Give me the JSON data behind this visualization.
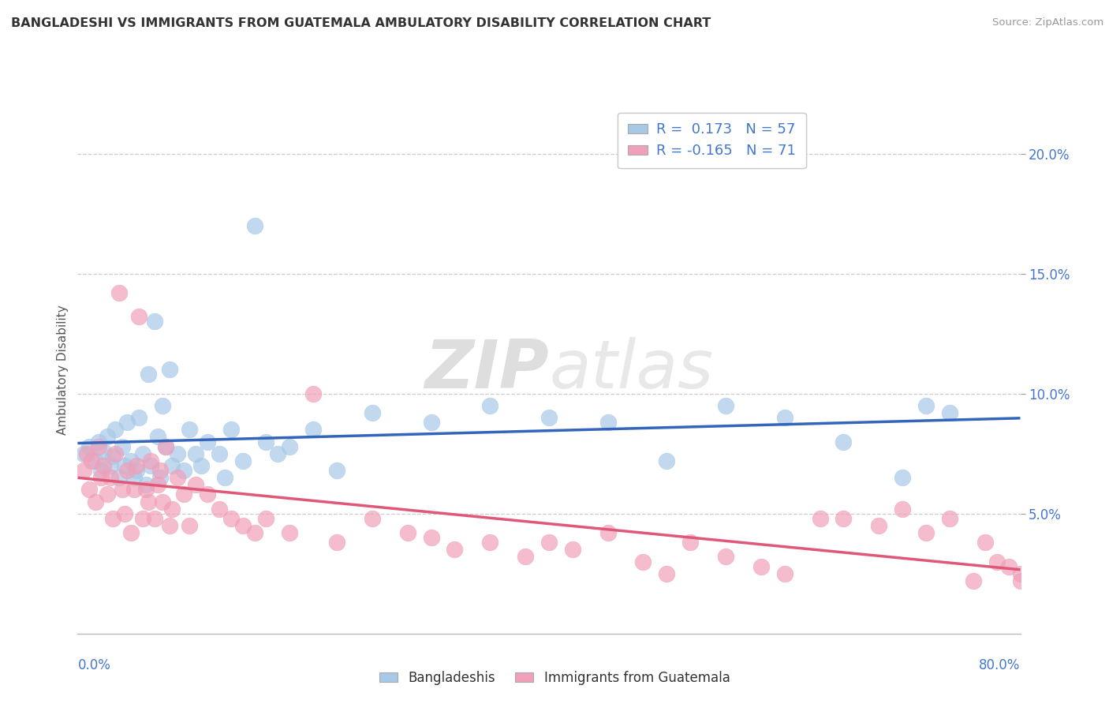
{
  "title": "BANGLADESHI VS IMMIGRANTS FROM GUATEMALA AMBULATORY DISABILITY CORRELATION CHART",
  "source": "Source: ZipAtlas.com",
  "ylabel": "Ambulatory Disability",
  "xlim": [
    0.0,
    0.8
  ],
  "ylim": [
    0.0,
    0.22
  ],
  "yticks": [
    0.05,
    0.1,
    0.15,
    0.2
  ],
  "ytick_labels": [
    "5.0%",
    "10.0%",
    "15.0%",
    "20.0%"
  ],
  "legend_entry1": "R =  0.173   N = 57",
  "legend_entry2": "R = -0.165   N = 71",
  "legend_label1": "Bangladeshis",
  "legend_label2": "Immigrants from Guatemala",
  "color_blue": "#A8C8E8",
  "color_pink": "#F0A0B8",
  "line_blue": "#3366BB",
  "line_pink": "#E05878",
  "watermark_ZIP": "ZIP",
  "watermark_atlas": "atlas",
  "blue_x": [
    0.005,
    0.01,
    0.015,
    0.018,
    0.02,
    0.022,
    0.025,
    0.028,
    0.03,
    0.032,
    0.035,
    0.038,
    0.04,
    0.042,
    0.045,
    0.048,
    0.05,
    0.052,
    0.055,
    0.058,
    0.06,
    0.062,
    0.065,
    0.068,
    0.07,
    0.072,
    0.075,
    0.078,
    0.08,
    0.085,
    0.09,
    0.095,
    0.1,
    0.105,
    0.11,
    0.12,
    0.125,
    0.13,
    0.14,
    0.15,
    0.16,
    0.17,
    0.18,
    0.2,
    0.22,
    0.25,
    0.3,
    0.35,
    0.4,
    0.45,
    0.5,
    0.55,
    0.6,
    0.65,
    0.7,
    0.72,
    0.74
  ],
  "blue_y": [
    0.075,
    0.078,
    0.072,
    0.08,
    0.068,
    0.076,
    0.082,
    0.07,
    0.074,
    0.085,
    0.065,
    0.078,
    0.07,
    0.088,
    0.072,
    0.065,
    0.068,
    0.09,
    0.075,
    0.062,
    0.108,
    0.07,
    0.13,
    0.082,
    0.065,
    0.095,
    0.078,
    0.11,
    0.07,
    0.075,
    0.068,
    0.085,
    0.075,
    0.07,
    0.08,
    0.075,
    0.065,
    0.085,
    0.072,
    0.17,
    0.08,
    0.075,
    0.078,
    0.085,
    0.068,
    0.092,
    0.088,
    0.095,
    0.09,
    0.088,
    0.072,
    0.095,
    0.09,
    0.08,
    0.065,
    0.095,
    0.092
  ],
  "pink_x": [
    0.005,
    0.008,
    0.01,
    0.012,
    0.015,
    0.018,
    0.02,
    0.022,
    0.025,
    0.028,
    0.03,
    0.032,
    0.035,
    0.038,
    0.04,
    0.042,
    0.045,
    0.048,
    0.05,
    0.052,
    0.055,
    0.058,
    0.06,
    0.062,
    0.065,
    0.068,
    0.07,
    0.072,
    0.075,
    0.078,
    0.08,
    0.085,
    0.09,
    0.095,
    0.1,
    0.11,
    0.12,
    0.13,
    0.14,
    0.15,
    0.16,
    0.18,
    0.2,
    0.22,
    0.25,
    0.28,
    0.3,
    0.32,
    0.35,
    0.38,
    0.4,
    0.42,
    0.45,
    0.48,
    0.5,
    0.52,
    0.55,
    0.58,
    0.6,
    0.63,
    0.65,
    0.68,
    0.7,
    0.72,
    0.74,
    0.76,
    0.77,
    0.78,
    0.79,
    0.8,
    0.8
  ],
  "pink_y": [
    0.068,
    0.075,
    0.06,
    0.072,
    0.055,
    0.078,
    0.065,
    0.07,
    0.058,
    0.065,
    0.048,
    0.075,
    0.142,
    0.06,
    0.05,
    0.068,
    0.042,
    0.06,
    0.07,
    0.132,
    0.048,
    0.06,
    0.055,
    0.072,
    0.048,
    0.062,
    0.068,
    0.055,
    0.078,
    0.045,
    0.052,
    0.065,
    0.058,
    0.045,
    0.062,
    0.058,
    0.052,
    0.048,
    0.045,
    0.042,
    0.048,
    0.042,
    0.1,
    0.038,
    0.048,
    0.042,
    0.04,
    0.035,
    0.038,
    0.032,
    0.038,
    0.035,
    0.042,
    0.03,
    0.025,
    0.038,
    0.032,
    0.028,
    0.025,
    0.048,
    0.048,
    0.045,
    0.052,
    0.042,
    0.048,
    0.022,
    0.038,
    0.03,
    0.028,
    0.025,
    0.022
  ]
}
